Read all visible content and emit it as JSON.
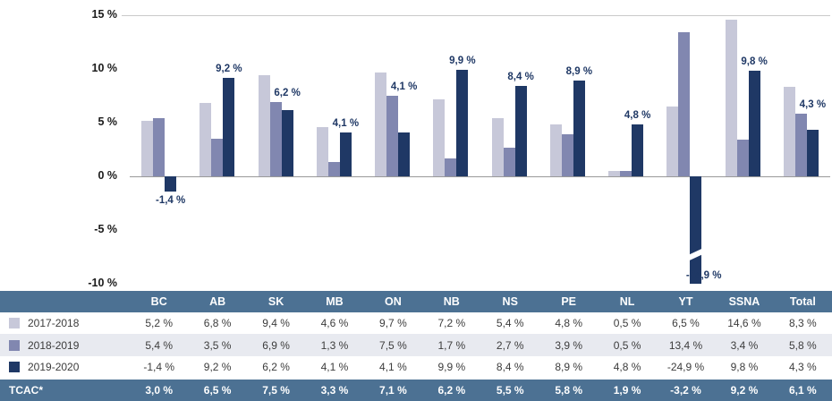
{
  "colors": {
    "series_2017_2018": "#c7c8d9",
    "series_2018_2019": "#8187b0",
    "series_2019_2020": "#1f3865",
    "table_header_bg": "#4c7193",
    "alt_row_bg": "#e8eaf0",
    "data_label_text": "#1f3865"
  },
  "chart_data": {
    "type": "bar",
    "title": "",
    "xlabel": "",
    "ylabel": "",
    "categories": [
      "BC",
      "AB",
      "SK",
      "MB",
      "ON",
      "NB",
      "NS",
      "PE",
      "NL",
      "YT",
      "SSNA",
      "Total"
    ],
    "series": [
      {
        "name": "2017-2018",
        "color": "#c7c8d9",
        "values": [
          5.2,
          6.8,
          9.4,
          4.6,
          9.7,
          7.2,
          5.4,
          4.8,
          0.5,
          6.5,
          14.6,
          8.3
        ]
      },
      {
        "name": "2018-2019",
        "color": "#8187b0",
        "values": [
          5.4,
          3.5,
          6.9,
          1.3,
          7.5,
          1.7,
          2.7,
          3.9,
          0.5,
          13.4,
          3.4,
          5.8
        ]
      },
      {
        "name": "2019-2020",
        "color": "#1f3865",
        "values": [
          -1.4,
          9.2,
          6.2,
          4.1,
          4.1,
          9.9,
          8.4,
          8.9,
          4.8,
          -24.9,
          9.8,
          4.3
        ],
        "data_labels": [
          "-1,4 %",
          "9,2 %",
          "6,2 %",
          "4,1 %",
          "4,1 %",
          "9,9 %",
          "8,4 %",
          "8,9 %",
          "4,8 %",
          "-24,9 %",
          "9,8 %",
          "4,3 %"
        ]
      }
    ],
    "ylim": [
      -10,
      15
    ],
    "y_ticks": [
      {
        "value": 15,
        "label": "15 %"
      },
      {
        "value": 10,
        "label": "10 %"
      },
      {
        "value": 5,
        "label": "5 %"
      },
      {
        "value": 0,
        "label": "0 %"
      },
      {
        "value": -5,
        "label": "-5 %"
      },
      {
        "value": -10,
        "label": "-10 %"
      }
    ],
    "grid": "top line and zero line only",
    "legend_position": "in-table-left-column",
    "axis_break": {
      "category": "YT",
      "series": "2019-2020",
      "actual_value": -24.9,
      "label": "-24,9 %"
    }
  },
  "table": {
    "columns": [
      "BC",
      "AB",
      "SK",
      "MB",
      "ON",
      "NB",
      "NS",
      "PE",
      "NL",
      "YT",
      "SSNA",
      "Total"
    ],
    "rows": [
      {
        "label": "2017-2018",
        "swatch": "#c7c8d9",
        "highlight": false,
        "values": [
          "5,2 %",
          "6,8 %",
          "9,4 %",
          "4,6 %",
          "9,7 %",
          "7,2 %",
          "5,4 %",
          "4,8 %",
          "0,5 %",
          "6,5 %",
          "14,6 %",
          "8,3 %"
        ]
      },
      {
        "label": "2018-2019",
        "swatch": "#8187b0",
        "highlight": false,
        "values": [
          "5,4 %",
          "3,5 %",
          "6,9 %",
          "1,3 %",
          "7,5 %",
          "1,7 %",
          "2,7 %",
          "3,9 %",
          "0,5 %",
          "13,4 %",
          "3,4 %",
          "5,8 %"
        ]
      },
      {
        "label": "2019-2020",
        "swatch": "#1f3865",
        "highlight": false,
        "values": [
          "-1,4 %",
          "9,2 %",
          "6,2 %",
          "4,1 %",
          "4,1 %",
          "9,9 %",
          "8,4 %",
          "8,9 %",
          "4,8 %",
          "-24,9 %",
          "9,8 %",
          "4,3 %"
        ]
      },
      {
        "label": "TCAC*",
        "swatch": null,
        "highlight": true,
        "values": [
          "3,0 %",
          "6,5 %",
          "7,5 %",
          "3,3 %",
          "7,1 %",
          "6,2 %",
          "5,5 %",
          "5,8 %",
          "1,9 %",
          "-3,2 %",
          "9,2 %",
          "6,1 %"
        ]
      }
    ]
  }
}
